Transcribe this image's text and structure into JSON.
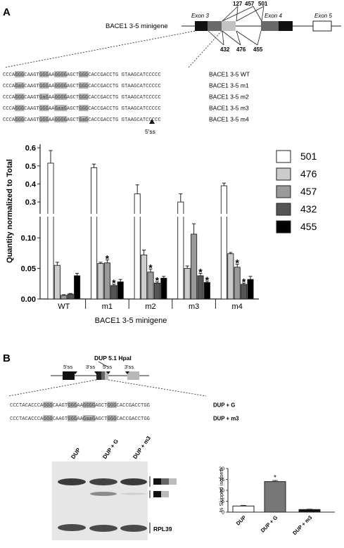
{
  "panel_a": {
    "label": "A",
    "construct": "BACE1 3-5 minigene",
    "exon3": "Exon 3",
    "exon4": "Exon 4",
    "exon5": "Exon 5",
    "top_sites": [
      "127",
      "457",
      "501"
    ],
    "bottom_sites": [
      "432",
      "476",
      "455"
    ],
    "splice_label": "5'ss",
    "sequences": [
      {
        "pre": "CCCA",
        "h1": "GGG",
        "m1": "CAAGT",
        "h2": "GGG",
        "m2": "AA",
        "h3": "GGGG",
        "m3": "AGCT",
        "h4": "GGG",
        "post": "CACCGACCTG GTAAGCATCCCCC",
        "name": "BACE1 3-5 WT"
      },
      {
        "pre": "CCCA",
        "h1": "GaG",
        "m1": "CAAGT",
        "h2": "GGG",
        "m2": "AA",
        "h3": "GGGG",
        "m3": "AGCT",
        "h4": "GGG",
        "post": "CACCGACCTG GTAAGCATCCCCC",
        "name": "BACE1 3-5 m1"
      },
      {
        "pre": "CCCA",
        "h1": "GGG",
        "m1": "CAAGT",
        "h2": "GaG",
        "m2": "AA",
        "h3": "GGGG",
        "m3": "AGCT",
        "h4": "GGG",
        "post": "CACCGACCTG GTAAGCATCCCCC",
        "name": "BACE1 3-5 m2"
      },
      {
        "pre": "CCCA",
        "h1": "GGG",
        "m1": "CAAGT",
        "h2": "GGG",
        "m2": "AA",
        "h3": "GaaG",
        "m3": "AGCT",
        "h4": "GGG",
        "post": "CACCGACCTG GTAAGCATCCCCC",
        "name": "BACE1 3-5 m3"
      },
      {
        "pre": "CCCA",
        "h1": "GGG",
        "m1": "CAAGT",
        "h2": "GGG",
        "m2": "AA",
        "h3": "GGGG",
        "m3": "AGCT",
        "h4": "GaG",
        "post": "CACCGACCTG GTAAGCATCCCCC",
        "name": "BACE1 3-5 m4"
      }
    ]
  },
  "chart_data": [
    {
      "type": "bar",
      "categories": [
        "WT",
        "m1",
        "m2",
        "m3",
        "m4"
      ],
      "ylabel": "Quantity normalized to Total",
      "xlabel": "BACE1 3-5 minigene",
      "ylim_lower": [
        0,
        0.13
      ],
      "ylim_upper": [
        0.25,
        0.62
      ],
      "yticks_lower": [
        "0.00",
        "0.05",
        "0.10"
      ],
      "yticks_upper": [
        "0.3",
        "0.4",
        "0.5",
        "0.6"
      ],
      "series": [
        {
          "name": "501",
          "color": "#ffffff",
          "values": [
            0.515,
            0.49,
            0.345,
            0.3,
            0.39
          ],
          "errors": [
            0.07,
            0.02,
            0.05,
            0.045,
            0.015
          ]
        },
        {
          "name": "476",
          "color": "#cccccc",
          "values": [
            0.055,
            0.058,
            0.072,
            0.05,
            0.074
          ],
          "errors": [
            0.005,
            0.002,
            0.008,
            0.004,
            0.002
          ]
        },
        {
          "name": "457",
          "color": "#9a9a9a",
          "values": [
            0.006,
            0.059,
            0.044,
            0.106,
            0.052
          ],
          "errors": [
            0.001,
            0.005,
            0.005,
            0.017,
            0.005
          ]
        },
        {
          "name": "432",
          "color": "#555555",
          "values": [
            0.008,
            0.022,
            0.026,
            0.038,
            0.024
          ],
          "errors": [
            0.001,
            0.002,
            0.002,
            0.004,
            0.002
          ]
        },
        {
          "name": "455",
          "color": "#000000",
          "values": [
            0.038,
            0.028,
            0.034,
            0.027,
            0.032
          ],
          "errors": [
            0.004,
            0.004,
            0.003,
            0.002,
            0.005
          ]
        }
      ],
      "stars": [
        {
          "series": 2,
          "category": 1
        },
        {
          "series": 3,
          "category": 1
        },
        {
          "series": 2,
          "category": 2
        },
        {
          "series": 3,
          "category": 2
        },
        {
          "series": 3,
          "category": 3
        },
        {
          "series": 4,
          "category": 3
        },
        {
          "series": 2,
          "category": 4
        },
        {
          "series": 3,
          "category": 4
        }
      ],
      "star_symbol": "*"
    },
    {
      "type": "bar",
      "categories": [
        "DUP",
        "DUP + G",
        "DUP + m3"
      ],
      "values": [
        2.8,
        14.0,
        1.2
      ],
      "errors": [
        0.3,
        0.5,
        0.15
      ],
      "colors": [
        "#ffffff",
        "#777777",
        "#111111"
      ],
      "ylabel": "% Skipped isoform",
      "ylim": [
        0,
        20
      ],
      "yticks": [
        "0",
        "5",
        "10",
        "15",
        "20"
      ],
      "star_category": 1,
      "star_symbol": "*"
    }
  ],
  "panel_b": {
    "label": "B",
    "construct": "DUP 5.1 HpaI",
    "splice_labels": [
      "5'ss",
      "3'ss",
      "5'ss",
      "3'ss"
    ],
    "sequences": [
      {
        "pre": "CCCTACACCCA",
        "h1": "GGG",
        "m1": "CAAGT",
        "h2": "GGG",
        "m2": "AA",
        "h3": "GGGG",
        "m3": "AGCT",
        "h4": "GGG",
        "post": "CACCGACCTGG",
        "name": "DUP + G"
      },
      {
        "pre": "CCCTACACCCA",
        "h1": "GGG",
        "m1": "CAAGT",
        "h2": "GGG",
        "m2": "AA",
        "h3": "GaaG",
        "m3": "AGCT",
        "h4": "GGG",
        "post": "CACCGACCTGG",
        "name": "DUP + m3"
      }
    ],
    "gel_lanes": [
      "DUP",
      "DUP + G",
      "DUP + m3"
    ],
    "gel_marker": "RPL39"
  }
}
